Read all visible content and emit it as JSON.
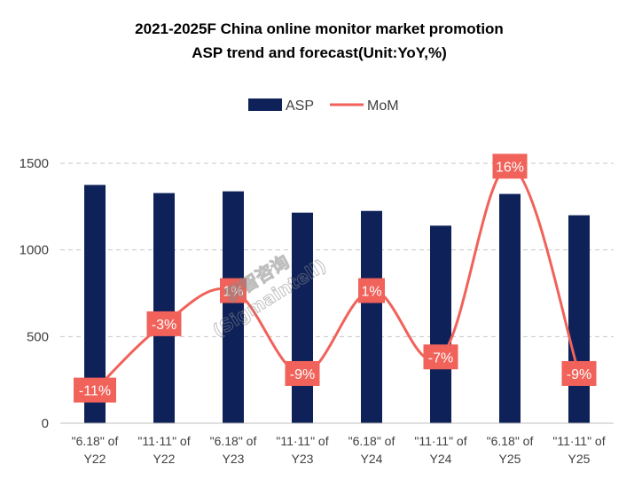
{
  "chart_data": {
    "type": "bar",
    "title_lines": [
      "2021-2025F China online monitor market promotion",
      "ASP trend and forecast(Unit:YoY,%)"
    ],
    "categories": [
      [
        "\"6.18\" of",
        "Y22"
      ],
      [
        "\"11·11\" of",
        "Y22"
      ],
      [
        "\"6.18\" of",
        "Y23"
      ],
      [
        "\"11·11\" of",
        "Y23"
      ],
      [
        "\"6.18\" of",
        "Y24"
      ],
      [
        "\"11·11\" of",
        "Y24"
      ],
      [
        "\"6.18\" of",
        "Y25"
      ],
      [
        "\"11·11\" of",
        "Y25"
      ]
    ],
    "series": [
      {
        "name": "ASP",
        "type": "bar",
        "values": [
          1375,
          1328,
          1338,
          1215,
          1225,
          1140,
          1323,
          1200
        ]
      },
      {
        "name": "MoM",
        "type": "line",
        "values": [
          -11,
          -3,
          1,
          -9,
          1,
          -7,
          16,
          -9
        ],
        "labels": [
          "-11%",
          "-3%",
          "1%",
          "-9%",
          "1%",
          "-7%",
          "16%",
          "-9%"
        ]
      }
    ],
    "ylim": [
      0,
      1500
    ],
    "yticks": [
      0,
      500,
      1000,
      1500
    ],
    "grid": true,
    "legend": "top-center",
    "colors": {
      "bar": "#0e2158",
      "line": "#f0625a",
      "label_bg": "#f0625a",
      "grid": "#c8c8c8"
    }
  },
  "watermark": {
    "line1": "群智咨询",
    "line2": "(Sigmaintell)"
  }
}
